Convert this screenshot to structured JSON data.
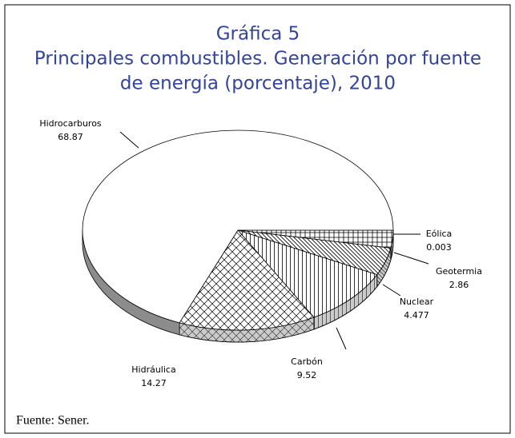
{
  "chart_data": {
    "type": "pie",
    "title": [
      "Gráfica 5",
      "Principales combustibles. Generación por fuente",
      "de energía (porcentaje), 2010"
    ],
    "categories": [
      "Eólica",
      "Geotermia",
      "Nuclear",
      "Carbón",
      "Hidráulica",
      "Hidrocarburos"
    ],
    "values": [
      0.003,
      2.86,
      4.477,
      9.52,
      14.27,
      68.87
    ],
    "patterns": [
      "horizontal",
      "grid",
      "diagonal",
      "vertical",
      "crosshatch",
      "none"
    ],
    "source": "Fuente: Sener."
  }
}
